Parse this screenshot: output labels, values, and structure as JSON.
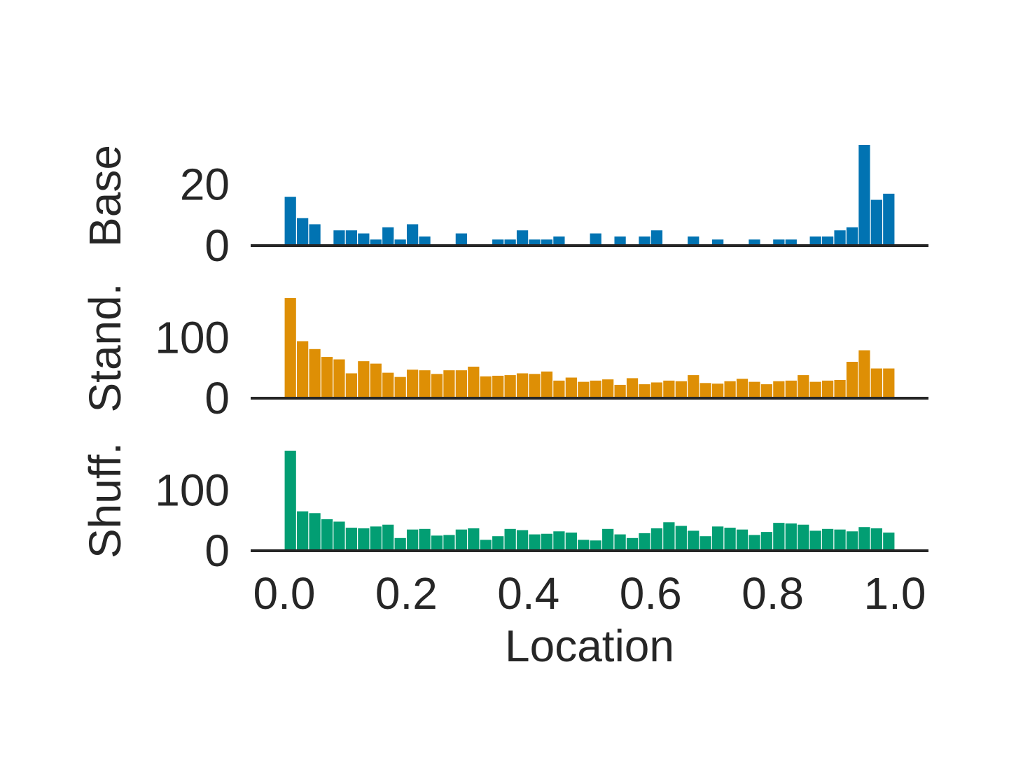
{
  "chart_data": [
    {
      "type": "bar",
      "ylabel": "Base",
      "color": "#0173b2",
      "yticks": [
        0,
        20
      ],
      "ylim": [
        0,
        33
      ],
      "values": [
        16,
        9,
        7,
        0,
        5,
        5,
        4,
        2,
        6,
        2,
        7,
        3,
        0,
        0,
        4,
        0,
        0,
        2,
        2,
        5,
        2,
        2,
        3,
        0,
        0,
        4,
        0,
        3,
        0,
        3,
        5,
        0,
        0,
        3,
        0,
        2,
        0,
        0,
        2,
        0,
        2,
        2,
        0,
        3,
        3,
        5,
        6,
        33,
        15,
        17
      ]
    },
    {
      "type": "bar",
      "ylabel": "Stand.",
      "color": "#de8f05",
      "yticks": [
        0,
        100
      ],
      "ylim": [
        0,
        165
      ],
      "values": [
        165,
        94,
        81,
        68,
        64,
        41,
        61,
        57,
        42,
        35,
        47,
        46,
        40,
        46,
        46,
        52,
        36,
        37,
        38,
        41,
        40,
        44,
        29,
        34,
        27,
        29,
        31,
        22,
        33,
        23,
        26,
        29,
        28,
        38,
        25,
        24,
        28,
        32,
        27,
        23,
        28,
        29,
        38,
        27,
        29,
        30,
        60,
        79,
        49,
        49
      ]
    },
    {
      "type": "bar",
      "ylabel": "Shuff.",
      "color": "#029e73",
      "yticks": [
        0,
        100
      ],
      "ylim": [
        0,
        165
      ],
      "values": [
        165,
        65,
        62,
        52,
        48,
        38,
        37,
        40,
        43,
        21,
        35,
        36,
        25,
        26,
        35,
        37,
        18,
        24,
        36,
        34,
        27,
        28,
        32,
        30,
        18,
        17,
        36,
        27,
        21,
        29,
        37,
        47,
        41,
        33,
        24,
        40,
        38,
        35,
        26,
        31,
        46,
        45,
        43,
        33,
        36,
        35,
        32,
        39,
        37,
        30
      ]
    }
  ],
  "xaxis": {
    "label": "Location",
    "ticks": [
      "0.0",
      "0.2",
      "0.4",
      "0.6",
      "0.8",
      "1.0"
    ],
    "tick_values": [
      0.0,
      0.2,
      0.4,
      0.6,
      0.8,
      1.0
    ],
    "xlim": [
      -0.055,
      1.055
    ],
    "bins": 50,
    "range": [
      0.0,
      1.0
    ]
  },
  "colors": {
    "axis": "#262626",
    "background": "#ffffff"
  }
}
